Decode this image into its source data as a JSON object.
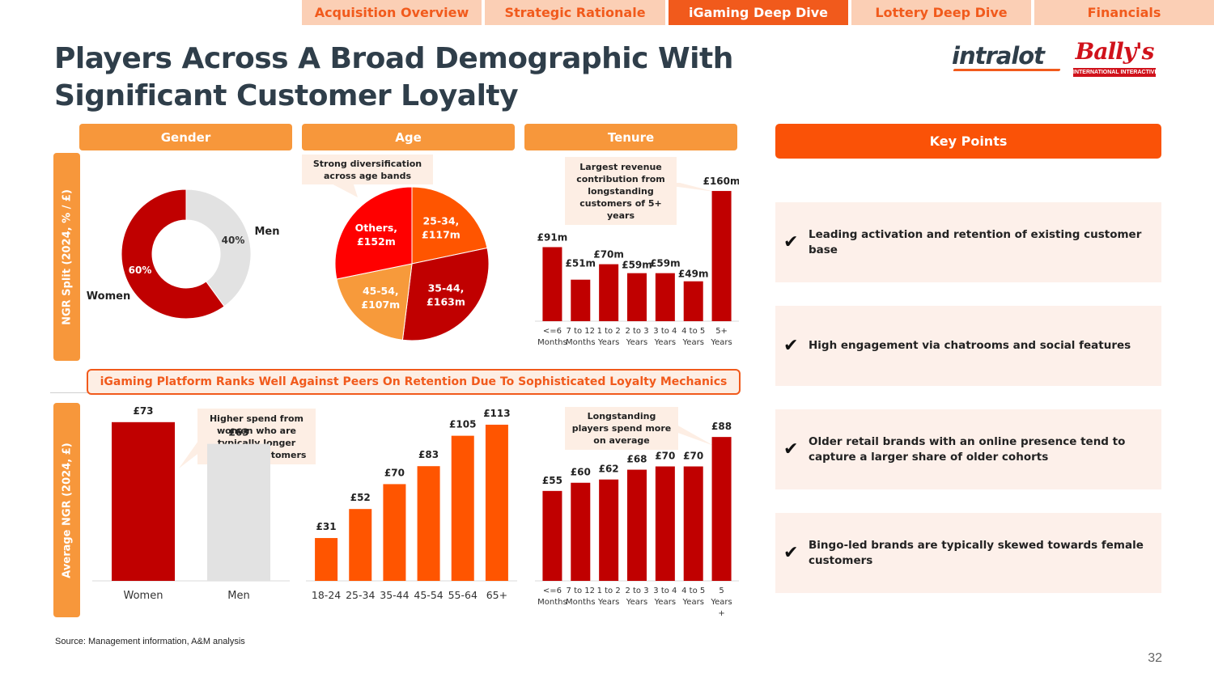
{
  "nav": {
    "tabs": [
      {
        "label": "Acquisition Overview",
        "active": false
      },
      {
        "label": "Strategic Rationale",
        "active": false
      },
      {
        "label": "iGaming Deep Dive",
        "active": true
      },
      {
        "label": "Lottery Deep Dive",
        "active": false
      },
      {
        "label": "Financials",
        "active": false
      }
    ]
  },
  "title": "Players Across A Broad Demographic With Significant Customer Loyalty",
  "logos": {
    "intralot": "intralot",
    "ballys": "Bally's",
    "ballys_sub": "INTERNATIONAL INTERACTIVE"
  },
  "headers": {
    "gender": "Gender",
    "age": "Age",
    "tenure": "Tenure",
    "key_points": "Key Points"
  },
  "side_labels": {
    "top": "NGR Split (2024, % / £)",
    "bottom": "Average NGR (2024, £)"
  },
  "banner": "iGaming Platform Ranks Well Against Peers On Retention Due To Sophisticated Loyalty Mechanics",
  "callouts": {
    "age": "Strong diversification across age bands",
    "tenure": "Largest revenue contribution from longstanding customers of 5+ years",
    "gender_avg": "Higher spend from women who are typically longer standing customers",
    "tenure_avg": "Longstanding players spend more on average"
  },
  "key_points": [
    "Leading activation and retention of existing customer base",
    "High engagement via chatrooms and social features",
    "Older retail brands with an online presence tend to capture a larger share of older cohorts",
    "Bingo-led brands are typically skewed towards female customers"
  ],
  "source": "Source: Management information, A&M analysis",
  "page_number": "32",
  "colors": {
    "dark_red": "#c00000",
    "red": "#ff0000",
    "orange": "#ff5500",
    "light_orange": "#f79a3b",
    "grey": "#e2e2e2",
    "accent": "#f15a1c"
  },
  "chart_data": [
    {
      "id": "gender_split",
      "type": "pie",
      "variant": "donut",
      "title": "Gender",
      "slices": [
        {
          "label": "Men",
          "value": 40,
          "display": "40%",
          "color": "#e2e2e2"
        },
        {
          "label": "Women",
          "value": 60,
          "display": "60%",
          "color": "#c00000"
        }
      ]
    },
    {
      "id": "age_split",
      "type": "pie",
      "title": "Age",
      "slices": [
        {
          "label": "25-34,",
          "value": 117,
          "display": "£117m",
          "color": "#ff5500"
        },
        {
          "label": "35-44,",
          "value": 163,
          "display": "£163m",
          "color": "#c00000"
        },
        {
          "label": "45-54,",
          "value": 107,
          "display": "£107m",
          "color": "#f79a3b"
        },
        {
          "label": "Others,",
          "value": 152,
          "display": "£152m",
          "color": "#ff0000"
        }
      ]
    },
    {
      "id": "tenure_split",
      "type": "bar",
      "title": "Tenure",
      "unit": "£m",
      "ylim": [
        0,
        170
      ],
      "categories": [
        [
          "<=6",
          "Months"
        ],
        [
          "7 to 12",
          "Months"
        ],
        [
          "1 to 2",
          "Years"
        ],
        [
          "2 to 3",
          "Years"
        ],
        [
          "3 to 4",
          "Years"
        ],
        [
          "4 to 5",
          "Years"
        ],
        [
          "5+",
          "Years"
        ]
      ],
      "values": [
        91,
        51,
        70,
        59,
        59,
        49,
        160
      ],
      "labels": [
        "£91m",
        "£51m",
        "£70m",
        "£59m",
        "£59m",
        "£49m",
        "£160m"
      ],
      "color": "#c00000"
    },
    {
      "id": "gender_avg",
      "type": "bar",
      "unit": "£",
      "ylim": [
        0,
        80
      ],
      "categories": [
        "Women",
        "Men"
      ],
      "values": [
        73,
        63
      ],
      "labels": [
        "£73",
        "£63"
      ],
      "colors": [
        "#c00000",
        "#e2e2e2"
      ]
    },
    {
      "id": "age_avg",
      "type": "bar",
      "unit": "£",
      "ylim": [
        0,
        120
      ],
      "categories": [
        "18-24",
        "25-34",
        "35-44",
        "45-54",
        "55-64",
        "65+"
      ],
      "values": [
        31,
        52,
        70,
        83,
        105,
        113
      ],
      "labels": [
        "£31",
        "£52",
        "£70",
        "£83",
        "£105",
        "£113"
      ],
      "color": "#ff5500"
    },
    {
      "id": "tenure_avg",
      "type": "bar",
      "unit": "£",
      "ylim": [
        0,
        95
      ],
      "categories": [
        [
          "<=6",
          "Months"
        ],
        [
          "7 to 12",
          "Months"
        ],
        [
          "1 to 2",
          "Years"
        ],
        [
          "2 to 3",
          "Years"
        ],
        [
          "3 to 4",
          "Years"
        ],
        [
          "4 to 5",
          "Years"
        ],
        [
          "5",
          "Years",
          "+"
        ]
      ],
      "values": [
        55,
        60,
        62,
        68,
        70,
        70,
        88
      ],
      "labels": [
        "£55",
        "£60",
        "£62",
        "£68",
        "£70",
        "£70",
        "£88"
      ],
      "color": "#c00000"
    }
  ]
}
